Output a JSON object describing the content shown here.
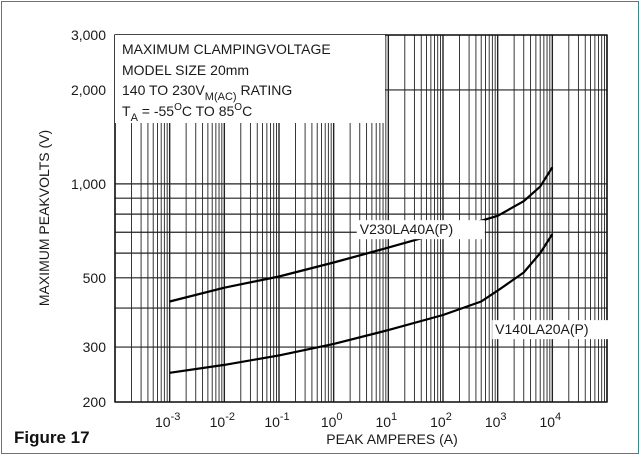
{
  "figure_label": "Figure 17",
  "chart_data": {
    "type": "line",
    "xscale": "log",
    "yscale": "log",
    "xlabel": "PEAK AMPERES (A)",
    "ylabel": "MAXIMUM PEAKVOLTS (V)",
    "xlim": [
      0.0001,
      100000
    ],
    "ylim": [
      200,
      3000
    ],
    "x_ticks": [
      {
        "label": "10",
        "exp": "-3"
      },
      {
        "label": "10",
        "exp": "-2"
      },
      {
        "label": "10",
        "exp": "-1"
      },
      {
        "label": "10",
        "exp": "0"
      },
      {
        "label": "10",
        "exp": "1"
      },
      {
        "label": "10",
        "exp": "2"
      },
      {
        "label": "10",
        "exp": "3"
      },
      {
        "label": "10",
        "exp": "4"
      }
    ],
    "y_ticks": [
      "200",
      "300",
      "500",
      "1,000",
      "2,000",
      "3,000"
    ],
    "info_box": {
      "line1": "MAXIMUM CLAMPINGVOLTAGE",
      "line2": "MODEL SIZE 20mm",
      "line3_pre": "140 TO 230V",
      "line3_sub": "M(AC)",
      "line3_post": " RATING",
      "line4_t": "T",
      "line4_sub": "A",
      "line4_mid1": " = -55",
      "line4_sup1": "O",
      "line4_mid2": "C TO 85",
      "line4_sup2": "O",
      "line4_end": "C"
    },
    "grid": true,
    "series": [
      {
        "name": "V230LA40A(P)",
        "x": [
          0.001,
          0.01,
          0.1,
          1,
          10,
          100,
          1000,
          3000,
          6000,
          10000
        ],
        "y": [
          420,
          465,
          505,
          560,
          625,
          700,
          790,
          880,
          980,
          1130
        ]
      },
      {
        "name": "V140LA20A(P)",
        "x": [
          0.001,
          0.01,
          0.1,
          1,
          10,
          100,
          500,
          1000,
          3000,
          6000,
          10000
        ],
        "y": [
          248,
          263,
          282,
          307,
          340,
          380,
          420,
          455,
          520,
          600,
          690
        ]
      }
    ],
    "colors": {
      "curve": "#000000",
      "grid": "#222222",
      "frame": "#3a8a8a"
    }
  }
}
